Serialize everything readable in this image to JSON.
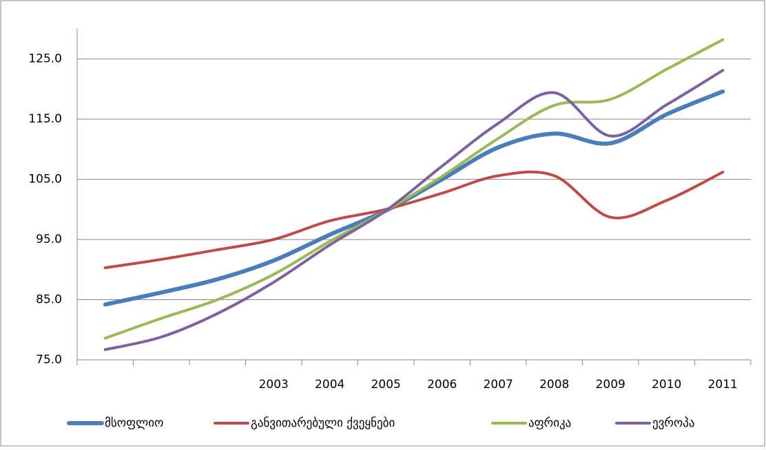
{
  "chart_data": {
    "type": "line",
    "categories": [
      null,
      null,
      null,
      "2003",
      "2004",
      "2005",
      "2006",
      "2007",
      "2008",
      "2009",
      "2010",
      "2011"
    ],
    "series": [
      {
        "name": "მსოფლიო",
        "color": "#4a7ebb",
        "values": [
          84.2,
          86.2,
          88.4,
          91.5,
          95.8,
          99.8,
          105.0,
          110.3,
          112.6,
          111.0,
          115.8,
          119.6
        ]
      },
      {
        "name": "განვითარებული ქვეყნები",
        "color": "#be4b48",
        "values": [
          90.3,
          91.7,
          93.3,
          95.0,
          98.1,
          100.0,
          102.7,
          105.6,
          105.6,
          98.7,
          101.5,
          106.2
        ]
      },
      {
        "name": "აფრიკა",
        "color": "#98b954",
        "values": [
          78.6,
          81.9,
          85.0,
          89.2,
          94.7,
          99.8,
          105.5,
          111.8,
          117.3,
          118.3,
          123.3,
          128.2
        ]
      },
      {
        "name": "ევროპა",
        "color": "#7d60a0",
        "values": [
          76.7,
          78.8,
          82.7,
          87.9,
          94.1,
          99.8,
          107.2,
          114.3,
          119.4,
          112.2,
          117.4,
          123.1
        ]
      }
    ],
    "ylim": [
      75,
      130
    ],
    "yticks": [
      {
        "value": 75,
        "label": "75.0"
      },
      {
        "value": 85,
        "label": "85.0"
      },
      {
        "value": 95,
        "label": "95.0"
      },
      {
        "value": 105,
        "label": "105.0"
      },
      {
        "value": 115,
        "label": "115.0"
      },
      {
        "value": 125,
        "label": "125.0"
      }
    ],
    "grid": true,
    "legend": "bottom"
  }
}
